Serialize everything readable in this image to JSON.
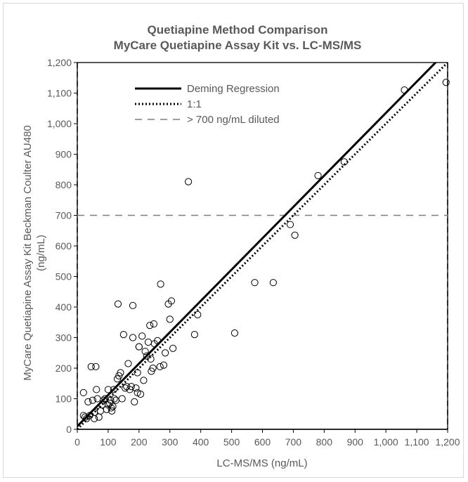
{
  "chart_data": {
    "type": "scatter",
    "title": "Quetiapine Method Comparison",
    "subtitle": "MyCare Quetiapine Assay Kit vs. LC-MS/MS",
    "xlabel": "LC-MS/MS (ng/mL)",
    "ylabel": "MyCare Quetiapine  Assay Kit Beckman Coulter AU480",
    "ylabel_unit": "(ng/mL)",
    "xlim": [
      0,
      1200
    ],
    "ylim": [
      0,
      1200
    ],
    "x_ticks": [
      "0",
      "100",
      "200",
      "300",
      "400",
      "500",
      "600",
      "700",
      "800",
      "900",
      "1,000",
      "1,100",
      "1,200"
    ],
    "y_ticks": [
      "0",
      "100",
      "200",
      "300",
      "400",
      "500",
      "600",
      "700",
      "800",
      "900",
      "1,000",
      "1,100",
      "1,200"
    ],
    "legend_position": "top-left",
    "legend": [
      {
        "label": "Deming Regression",
        "style": "solid"
      },
      {
        "label": "1:1",
        "style": "dotted"
      },
      {
        "label": "> 700 ng/mL diluted",
        "style": "dashed"
      }
    ],
    "deming_regression": {
      "slope": 1.025,
      "intercept": 10
    },
    "identity_line": {
      "slope": 1,
      "intercept": 0
    },
    "dilution_threshold": 700,
    "points": [
      [
        20,
        120
      ],
      [
        20,
        45
      ],
      [
        25,
        40
      ],
      [
        30,
        35
      ],
      [
        35,
        90
      ],
      [
        40,
        45
      ],
      [
        45,
        205
      ],
      [
        50,
        95
      ],
      [
        55,
        55
      ],
      [
        55,
        35
      ],
      [
        60,
        205
      ],
      [
        62,
        130
      ],
      [
        65,
        100
      ],
      [
        70,
        40
      ],
      [
        75,
        60
      ],
      [
        80,
        80
      ],
      [
        85,
        95
      ],
      [
        90,
        100
      ],
      [
        95,
        65
      ],
      [
        100,
        80
      ],
      [
        100,
        130
      ],
      [
        105,
        85
      ],
      [
        108,
        95
      ],
      [
        110,
        70
      ],
      [
        112,
        60
      ],
      [
        115,
        75
      ],
      [
        118,
        130
      ],
      [
        120,
        100
      ],
      [
        125,
        95
      ],
      [
        130,
        165
      ],
      [
        132,
        410
      ],
      [
        135,
        175
      ],
      [
        140,
        185
      ],
      [
        145,
        100
      ],
      [
        150,
        310
      ],
      [
        155,
        135
      ],
      [
        160,
        140
      ],
      [
        165,
        215
      ],
      [
        170,
        130
      ],
      [
        175,
        140
      ],
      [
        180,
        405
      ],
      [
        180,
        300
      ],
      [
        185,
        90
      ],
      [
        190,
        135
      ],
      [
        195,
        185
      ],
      [
        195,
        120
      ],
      [
        200,
        270
      ],
      [
        200,
        270
      ],
      [
        205,
        115
      ],
      [
        210,
        305
      ],
      [
        215,
        160
      ],
      [
        220,
        255
      ],
      [
        225,
        240
      ],
      [
        230,
        285
      ],
      [
        235,
        340
      ],
      [
        238,
        230
      ],
      [
        240,
        190
      ],
      [
        245,
        200
      ],
      [
        248,
        345
      ],
      [
        250,
        280
      ],
      [
        260,
        290
      ],
      [
        268,
        205
      ],
      [
        270,
        475
      ],
      [
        280,
        210
      ],
      [
        285,
        250
      ],
      [
        295,
        410
      ],
      [
        300,
        360
      ],
      [
        305,
        420
      ],
      [
        310,
        265
      ],
      [
        360,
        810
      ],
      [
        380,
        310
      ],
      [
        390,
        375
      ],
      [
        510,
        315
      ],
      [
        575,
        480
      ],
      [
        635,
        480
      ],
      [
        690,
        670
      ],
      [
        705,
        635
      ],
      [
        780,
        830
      ],
      [
        865,
        875
      ],
      [
        1060,
        1110
      ],
      [
        1195,
        1135
      ]
    ]
  }
}
